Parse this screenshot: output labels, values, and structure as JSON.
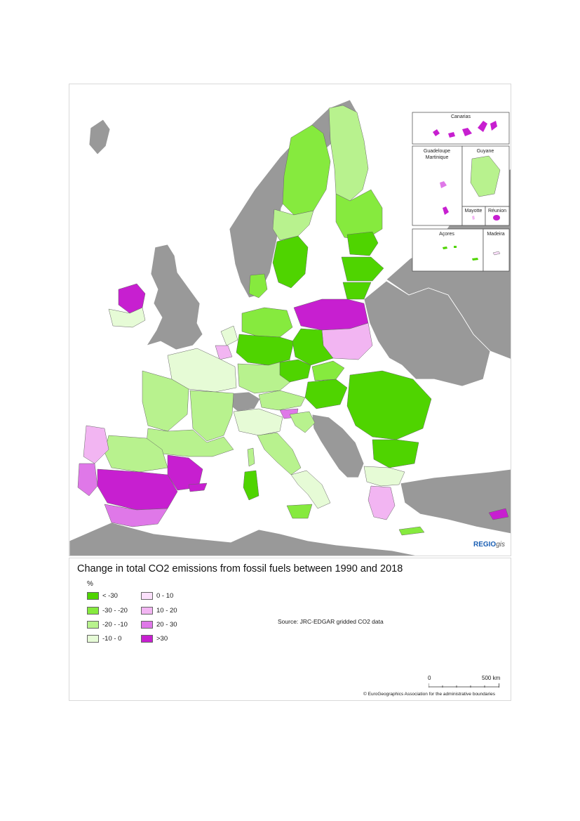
{
  "map": {
    "insets": {
      "canarias": "Canarias",
      "guadeloupe": "Guadeloupe",
      "martinique": "Martinique",
      "guyane": "Guyane",
      "mayotte": "Mayotte",
      "reunion": "Réunion",
      "acores": "Açores",
      "madeira": "Madeira"
    },
    "logo": {
      "main": "REGIO",
      "suffix": "gis"
    }
  },
  "legend": {
    "title": "Change in total CO2 emissions from fossil fuels between 1990 and 2018",
    "unit": "%",
    "classes": [
      {
        "label": "< -30",
        "color": "#4fd400"
      },
      {
        "label": "-30 - -20",
        "color": "#86ea3e"
      },
      {
        "label": "-20 - -10",
        "color": "#b8f28e"
      },
      {
        "label": "-10 - 0",
        "color": "#e6fbd6"
      },
      {
        "label": "0 - 10",
        "color": "#fbe0fb"
      },
      {
        "label": "10 - 20",
        "color": "#f2b5f2"
      },
      {
        "label": "20 - 30",
        "color": "#df78e8"
      },
      {
        "label": ">30",
        "color": "#c71fd0"
      }
    ],
    "no_data_color": "#999999",
    "source": "Source: JRC-EDGAR gridded CO2 data",
    "scale": {
      "zero": "0",
      "max": "500 km"
    },
    "copyright": "© EuroGeographics Association for the administrative boundaries"
  }
}
